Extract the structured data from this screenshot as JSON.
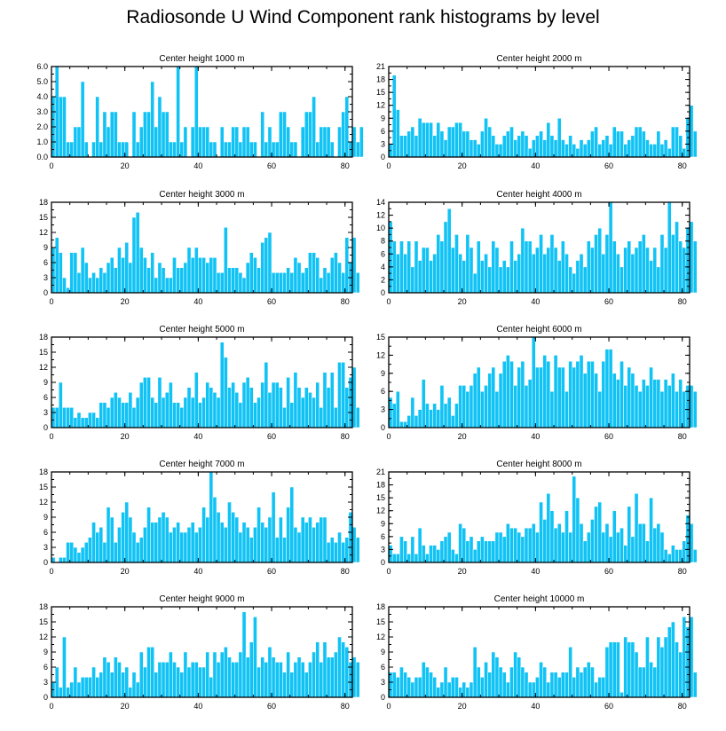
{
  "title": "Radiosonde U Wind Component rank histograms by level",
  "colors": {
    "bar": "#11c3f5",
    "frame": "#000000"
  },
  "chart_data": [
    {
      "type": "bar",
      "title": "Center height 1000 m",
      "xlim": [
        0,
        82
      ],
      "ylim": [
        0,
        6
      ],
      "xticks": [
        0,
        20,
        40,
        60,
        80
      ],
      "xtick_labels": [
        "0",
        "20",
        "40",
        "60",
        "80"
      ],
      "yticks": [
        0,
        1,
        2,
        3,
        4,
        5,
        6
      ],
      "ytick_labels": [
        "0.0",
        "1.0",
        "2.0",
        "3.0",
        "4.0",
        "5.0",
        "6.0"
      ],
      "values": [
        4,
        6,
        4,
        4,
        1,
        1,
        2,
        2,
        5,
        1,
        0,
        1,
        4,
        1,
        3,
        2,
        3,
        3,
        1,
        1,
        1,
        0,
        3,
        1,
        2,
        3,
        3,
        5,
        2,
        4,
        3,
        3,
        1,
        1,
        6,
        1,
        2,
        0,
        2,
        6,
        2,
        2,
        2,
        1,
        1,
        0,
        2,
        1,
        1,
        2,
        2,
        1,
        2,
        2,
        1,
        1,
        0,
        3,
        1,
        2,
        1,
        1,
        3,
        3,
        2,
        1,
        1,
        0,
        2,
        3,
        3,
        4,
        1,
        2,
        2,
        2,
        1,
        0,
        2,
        3,
        4,
        1,
        2,
        1,
        2
      ]
    },
    {
      "type": "bar",
      "title": "Center height 2000 m",
      "xlim": [
        0,
        82
      ],
      "ylim": [
        0,
        21
      ],
      "xticks": [
        0,
        20,
        40,
        60,
        80
      ],
      "xtick_labels": [
        "0",
        "20",
        "40",
        "60",
        "80"
      ],
      "yticks": [
        0,
        3,
        6,
        9,
        12,
        15,
        18,
        21
      ],
      "ytick_labels": [
        "0",
        "3",
        "6",
        "9",
        "12",
        "15",
        "18",
        "21"
      ],
      "values": [
        3,
        19,
        11,
        5,
        5,
        6,
        7,
        5,
        9,
        8,
        8,
        8,
        5,
        8,
        6,
        4,
        7,
        7,
        8,
        8,
        6,
        6,
        4,
        4,
        3,
        6,
        9,
        7,
        5,
        3,
        3,
        5,
        6,
        7,
        4,
        5,
        6,
        5,
        2,
        4,
        5,
        6,
        4,
        8,
        5,
        4,
        9,
        4,
        3,
        5,
        3,
        2,
        4,
        3,
        4,
        6,
        7,
        3,
        4,
        5,
        3,
        7,
        6,
        6,
        3,
        4,
        5,
        7,
        7,
        6,
        4,
        3,
        3,
        6,
        3,
        4,
        2,
        7,
        7,
        5,
        2,
        9,
        12,
        6
      ]
    },
    {
      "type": "bar",
      "title": "Center height 3000 m",
      "xlim": [
        0,
        82
      ],
      "ylim": [
        0,
        18
      ],
      "xticks": [
        0,
        20,
        40,
        60,
        80
      ],
      "xtick_labels": [
        "0",
        "20",
        "40",
        "60",
        "80"
      ],
      "yticks": [
        0,
        3,
        6,
        9,
        12,
        15,
        18
      ],
      "ytick_labels": [
        "0",
        "3",
        "6",
        "9",
        "12",
        "15",
        "18"
      ],
      "values": [
        9,
        11,
        8,
        3,
        1,
        8,
        8,
        4,
        9,
        6,
        3,
        4,
        3,
        5,
        4,
        6,
        7,
        5,
        9,
        7,
        10,
        6,
        15,
        16,
        9,
        7,
        5,
        8,
        3,
        6,
        5,
        3,
        3,
        7,
        5,
        5,
        6,
        9,
        7,
        9,
        7,
        7,
        6,
        7,
        7,
        4,
        4,
        13,
        5,
        5,
        5,
        4,
        3,
        6,
        8,
        7,
        5,
        10,
        11,
        12,
        4,
        4,
        4,
        4,
        5,
        4,
        7,
        6,
        4,
        5,
        8,
        8,
        7,
        3,
        5,
        4,
        7,
        8,
        6,
        4,
        11,
        6,
        11,
        4
      ]
    },
    {
      "type": "bar",
      "title": "Center height 4000 m",
      "xlim": [
        0,
        82
      ],
      "ylim": [
        0,
        14
      ],
      "xticks": [
        0,
        20,
        40,
        60,
        80
      ],
      "xtick_labels": [
        "0",
        "20",
        "40",
        "60",
        "80"
      ],
      "yticks": [
        0,
        2,
        4,
        6,
        8,
        10,
        12,
        14
      ],
      "ytick_labels": [
        "0",
        "2",
        "4",
        "6",
        "8",
        "10",
        "12",
        "14"
      ],
      "values": [
        11,
        8,
        6,
        8,
        6,
        8,
        4,
        8,
        5,
        7,
        7,
        5,
        6,
        9,
        8,
        11,
        13,
        7,
        9,
        6,
        5,
        9,
        7,
        3,
        8,
        5,
        6,
        4,
        8,
        7,
        4,
        5,
        4,
        8,
        5,
        6,
        10,
        8,
        8,
        6,
        7,
        9,
        6,
        7,
        9,
        7,
        5,
        8,
        6,
        4,
        3,
        5,
        6,
        4,
        8,
        7,
        9,
        10,
        6,
        9,
        14,
        8,
        6,
        4,
        7,
        8,
        6,
        7,
        8,
        9,
        7,
        5,
        7,
        4,
        9,
        7,
        14,
        9,
        11,
        8,
        7,
        10,
        11,
        8
      ]
    },
    {
      "type": "bar",
      "title": "Center height 5000 m",
      "xlim": [
        0,
        82
      ],
      "ylim": [
        0,
        18
      ],
      "xticks": [
        0,
        20,
        40,
        60,
        80
      ],
      "xtick_labels": [
        "0",
        "20",
        "40",
        "60",
        "80"
      ],
      "yticks": [
        0,
        3,
        6,
        9,
        12,
        15,
        18
      ],
      "ytick_labels": [
        "0",
        "3",
        "6",
        "9",
        "12",
        "15",
        "18"
      ],
      "values": [
        4,
        4,
        9,
        4,
        4,
        4,
        2,
        3,
        2,
        2,
        3,
        3,
        2,
        5,
        5,
        4,
        6,
        7,
        6,
        5,
        5,
        7,
        4,
        6,
        9,
        10,
        10,
        6,
        5,
        10,
        6,
        7,
        9,
        5,
        5,
        4,
        6,
        8,
        6,
        11,
        5,
        6,
        9,
        8,
        7,
        6,
        17,
        14,
        8,
        9,
        7,
        5,
        9,
        10,
        8,
        5,
        6,
        9,
        13,
        7,
        9,
        9,
        8,
        4,
        10,
        5,
        11,
        8,
        6,
        8,
        7,
        6,
        9,
        4,
        11,
        8,
        11,
        4,
        13,
        13,
        8,
        10,
        12,
        4
      ]
    },
    {
      "type": "bar",
      "title": "Center height 6000 m",
      "xlim": [
        0,
        82
      ],
      "ylim": [
        0,
        15
      ],
      "xticks": [
        0,
        20,
        40,
        60,
        80
      ],
      "xtick_labels": [
        "0",
        "20",
        "40",
        "60",
        "80"
      ],
      "yticks": [
        0,
        3,
        6,
        9,
        12,
        15
      ],
      "ytick_labels": [
        "0",
        "3",
        "6",
        "9",
        "12",
        "15"
      ],
      "values": [
        5,
        4,
        6,
        1,
        1,
        2,
        5,
        2,
        3,
        8,
        4,
        3,
        4,
        3,
        7,
        4,
        5,
        2,
        4,
        7,
        7,
        6,
        7,
        9,
        10,
        6,
        7,
        9,
        10,
        6,
        9,
        11,
        12,
        11,
        7,
        10,
        11,
        7,
        8,
        15,
        10,
        10,
        12,
        11,
        6,
        12,
        10,
        10,
        6,
        11,
        10,
        11,
        12,
        9,
        11,
        11,
        9,
        6,
        11,
        13,
        13,
        9,
        8,
        11,
        7,
        10,
        9,
        7,
        6,
        8,
        7,
        10,
        8,
        8,
        6,
        8,
        7,
        9,
        6,
        8,
        6,
        7,
        7,
        6
      ]
    },
    {
      "type": "bar",
      "title": "Center height 7000 m",
      "xlim": [
        0,
        82
      ],
      "ylim": [
        0,
        18
      ],
      "xticks": [
        0,
        20,
        40,
        60,
        80
      ],
      "xtick_labels": [
        "0",
        "20",
        "40",
        "60",
        "80"
      ],
      "yticks": [
        0,
        3,
        6,
        9,
        12,
        15,
        18
      ],
      "ytick_labels": [
        "0",
        "3",
        "6",
        "9",
        "12",
        "15",
        "18"
      ],
      "values": [
        1,
        0,
        1,
        1,
        4,
        4,
        3,
        2,
        3,
        4,
        5,
        8,
        6,
        7,
        4,
        11,
        9,
        4,
        7,
        10,
        12,
        9,
        6,
        4,
        5,
        7,
        11,
        8,
        8,
        9,
        10,
        9,
        6,
        7,
        8,
        6,
        6,
        7,
        8,
        6,
        7,
        11,
        9,
        18,
        13,
        10,
        8,
        7,
        12,
        10,
        9,
        6,
        8,
        7,
        5,
        7,
        11,
        8,
        7,
        9,
        14,
        5,
        9,
        5,
        11,
        15,
        7,
        6,
        9,
        8,
        9,
        7,
        8,
        9,
        9,
        4,
        5,
        4,
        6,
        4,
        5,
        10,
        7,
        5
      ]
    },
    {
      "type": "bar",
      "title": "Center height 8000 m",
      "xlim": [
        0,
        82
      ],
      "ylim": [
        0,
        21
      ],
      "xticks": [
        0,
        20,
        40,
        60,
        80
      ],
      "xtick_labels": [
        "0",
        "20",
        "40",
        "60",
        "80"
      ],
      "yticks": [
        0,
        3,
        6,
        9,
        12,
        15,
        18,
        21
      ],
      "ytick_labels": [
        "0",
        "3",
        "6",
        "9",
        "12",
        "15",
        "18",
        "21"
      ],
      "values": [
        4,
        2,
        2,
        6,
        5,
        2,
        6,
        2,
        8,
        4,
        2,
        4,
        4,
        3,
        5,
        6,
        7,
        3,
        2,
        9,
        8,
        5,
        6,
        3,
        5,
        6,
        5,
        5,
        5,
        7,
        7,
        6,
        9,
        8,
        8,
        7,
        6,
        8,
        8,
        9,
        7,
        14,
        10,
        16,
        12,
        8,
        9,
        7,
        12,
        7,
        20,
        15,
        9,
        5,
        7,
        10,
        13,
        14,
        7,
        9,
        6,
        12,
        7,
        8,
        4,
        13,
        6,
        16,
        9,
        9,
        5,
        15,
        8,
        9,
        7,
        3,
        2,
        4,
        3,
        3,
        5,
        11,
        9,
        3
      ]
    },
    {
      "type": "bar",
      "title": "Center height 9000 m",
      "xlim": [
        0,
        82
      ],
      "ylim": [
        0,
        18
      ],
      "xticks": [
        0,
        20,
        40,
        60,
        80
      ],
      "xtick_labels": [
        "0",
        "20",
        "40",
        "60",
        "80"
      ],
      "yticks": [
        0,
        3,
        6,
        9,
        12,
        15,
        18
      ],
      "ytick_labels": [
        "0",
        "3",
        "6",
        "9",
        "12",
        "15",
        "18"
      ],
      "values": [
        3,
        6,
        2,
        12,
        2,
        3,
        6,
        3,
        4,
        4,
        4,
        6,
        4,
        5,
        8,
        7,
        5,
        8,
        7,
        5,
        6,
        2,
        5,
        3,
        9,
        6,
        10,
        10,
        5,
        7,
        7,
        7,
        9,
        7,
        6,
        5,
        9,
        6,
        7,
        7,
        6,
        6,
        9,
        4,
        9,
        7,
        9,
        10,
        8,
        7,
        7,
        9,
        17,
        8,
        11,
        16,
        6,
        8,
        7,
        10,
        8,
        7,
        7,
        5,
        9,
        5,
        7,
        8,
        7,
        5,
        7,
        9,
        11,
        7,
        11,
        8,
        8,
        9,
        12,
        11,
        10,
        7,
        8,
        7
      ]
    },
    {
      "type": "bar",
      "title": "Center height 10000 m",
      "xlim": [
        0,
        82
      ],
      "ylim": [
        0,
        18
      ],
      "xticks": [
        0,
        20,
        40,
        60,
        80
      ],
      "xtick_labels": [
        "0",
        "20",
        "40",
        "60",
        "80"
      ],
      "yticks": [
        0,
        3,
        6,
        9,
        12,
        15,
        18
      ],
      "ytick_labels": [
        "0",
        "3",
        "6",
        "9",
        "12",
        "15",
        "18"
      ],
      "values": [
        5,
        5,
        4,
        6,
        5,
        4,
        3,
        4,
        4,
        7,
        6,
        5,
        4,
        2,
        3,
        6,
        3,
        4,
        4,
        2,
        3,
        2,
        3,
        10,
        6,
        4,
        7,
        5,
        9,
        8,
        6,
        5,
        3,
        6,
        9,
        8,
        6,
        5,
        3,
        3,
        4,
        7,
        6,
        3,
        5,
        5,
        4,
        5,
        5,
        10,
        4,
        6,
        5,
        6,
        7,
        6,
        3,
        4,
        4,
        10,
        11,
        11,
        11,
        1,
        12,
        11,
        11,
        9,
        6,
        6,
        12,
        7,
        6,
        12,
        10,
        12,
        14,
        15,
        11,
        9,
        16,
        14,
        16,
        5
      ]
    }
  ]
}
